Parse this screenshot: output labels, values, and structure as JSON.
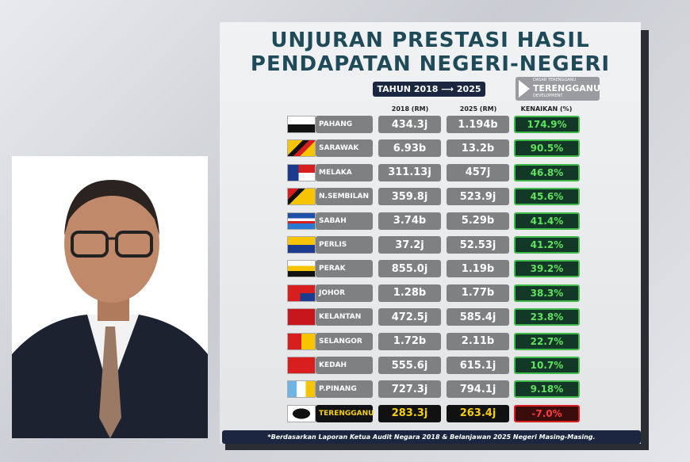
{
  "header": {
    "title_line1": "UNJURAN PRESTASI HASIL",
    "title_line2": "PENDAPATAN NEGERI-NEGERI",
    "period": "TAHUN 2018 ⟶ 2025",
    "logo_top": "DASAR TERENGGANU",
    "logo_main": "TERENGGANU",
    "logo_sub": "DEVELOPMENT"
  },
  "table": {
    "columns": [
      "2018 (RM)",
      "2025 (RM)",
      "KENAIKAN (%)"
    ],
    "rows": [
      [
        "PAHANG",
        "434.3j",
        "1.194b",
        "174.9%"
      ],
      [
        "SARAWAK",
        "6.93b",
        "13.2b",
        "90.5%"
      ],
      [
        "MELAKA",
        "311.13j",
        "457j",
        "46.8%"
      ],
      [
        "N.SEMBILAN",
        "359.8j",
        "523.9j",
        "45.6%"
      ],
      [
        "SABAH",
        "3.74b",
        "5.29b",
        "41.4%"
      ],
      [
        "PERLIS",
        "37.2j",
        "52.53j",
        "41.2%"
      ],
      [
        "PERAK",
        "855.0j",
        "1.19b",
        "39.2%"
      ],
      [
        "JOHOR",
        "1.28b",
        "1.77b",
        "38.3%"
      ],
      [
        "KELANTAN",
        "472.5j",
        "585.4j",
        "23.8%"
      ],
      [
        "SELANGOR",
        "1.72b",
        "2.11b",
        "22.7%"
      ],
      [
        "KEDAH",
        "555.6j",
        "615.1j",
        "10.7%"
      ],
      [
        "P.PINANG",
        "727.3j",
        "794.1j",
        "9.18%"
      ],
      [
        "TERENGGANU",
        "283.3j",
        "263.4j",
        "-7.0%"
      ]
    ]
  },
  "footer": {
    "note": "*Berdasarkan Laporan Ketua Audit Negara 2018 & Belanjawan 2025 Negeri Masing-Masing."
  }
}
